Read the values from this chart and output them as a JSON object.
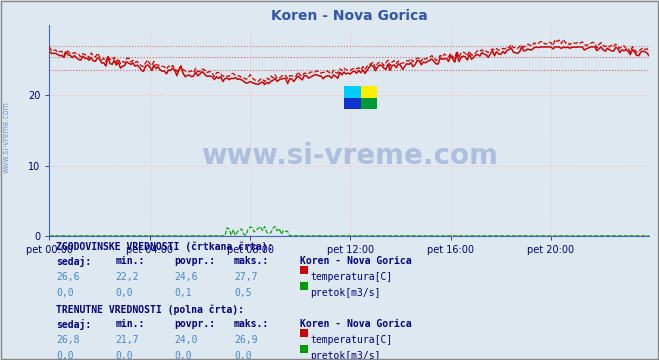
{
  "title": "Koren - Nova Gorica",
  "title_color": "#3355aa",
  "bg_color": "#dde8f0",
  "plot_bg_color": "#dde8f0",
  "x_labels": [
    "pet 00:00",
    "pet 04:00",
    "pet 08:00",
    "pet 12:00",
    "pet 16:00",
    "pet 20:00"
  ],
  "y_min": 0,
  "y_max": 30,
  "grid_color": "#c8d8e8",
  "grid_dotted_color": "#ffbbbb",
  "temp_color": "#cc0000",
  "flow_color": "#009900",
  "n_points": 288,
  "temp_hist_min": 22.2,
  "temp_hist_max": 27.7,
  "temp_hist_avg": 24.6,
  "temp_hist_current": 26.6,
  "temp_curr_min": 21.7,
  "temp_curr_max": 26.9,
  "temp_curr_avg": 24.0,
  "temp_curr_current": 26.8,
  "flow_hist_min": 0.0,
  "flow_hist_max": 0.5,
  "flow_hist_avg": 0.1,
  "flow_hist_current": 0.0,
  "flow_curr_min": 0.0,
  "flow_curr_max": 0.0,
  "flow_curr_avg": 0.0,
  "flow_curr_current": 0.0,
  "legend_station": "Koren - Nova Gorica",
  "label1": "ZGODOVINSKE VREDNOSTI (črtkana črta):",
  "label2": "TRENUTNE VREDNOSTI (polna črta):",
  "label_temp": "temperatura[C]",
  "label_flow": "pretok[m3/s]",
  "col_headers": [
    "sedaj:",
    "min.:",
    "povpr.:",
    "maks.:"
  ],
  "text_color_dark": "#000080",
  "text_color_blue": "#4488cc",
  "sidebar_text": "www.si-vreme.com",
  "watermark_text": "www.si-vreme.com"
}
